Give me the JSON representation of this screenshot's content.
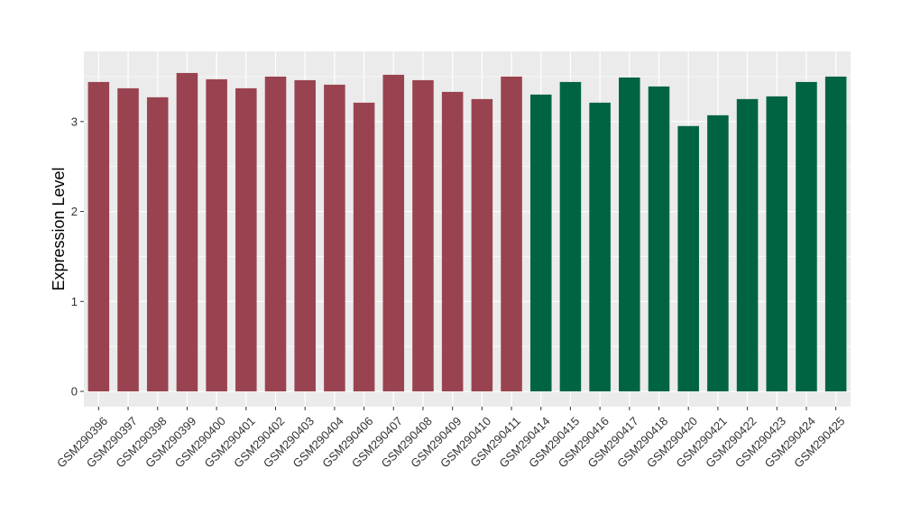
{
  "chart_data": {
    "type": "bar",
    "title": "",
    "xlabel": "",
    "ylabel": "Expression Level",
    "ylim": [
      -0.17,
      3.78
    ],
    "yticks": [
      0,
      1,
      2,
      3
    ],
    "grid": true,
    "legend": "none",
    "categories": [
      "GSM290396",
      "GSM290397",
      "GSM290398",
      "GSM290399",
      "GSM290400",
      "GSM290401",
      "GSM290402",
      "GSM290403",
      "GSM290404",
      "GSM290406",
      "GSM290407",
      "GSM290408",
      "GSM290409",
      "GSM290410",
      "GSM290411",
      "GSM290414",
      "GSM290415",
      "GSM290416",
      "GSM290417",
      "GSM290418",
      "GSM290420",
      "GSM290421",
      "GSM290422",
      "GSM290423",
      "GSM290424",
      "GSM290425"
    ],
    "values": [
      3.44,
      3.37,
      3.27,
      3.54,
      3.47,
      3.37,
      3.5,
      3.46,
      3.41,
      3.21,
      3.52,
      3.46,
      3.33,
      3.25,
      3.5,
      3.3,
      3.44,
      3.21,
      3.49,
      3.39,
      2.95,
      3.07,
      3.25,
      3.28,
      3.44,
      3.5
    ],
    "groups": [
      0,
      0,
      0,
      0,
      0,
      0,
      0,
      0,
      0,
      0,
      0,
      0,
      0,
      0,
      0,
      1,
      1,
      1,
      1,
      1,
      1,
      1,
      1,
      1,
      1,
      1
    ],
    "colors": [
      "#9a4350",
      "#006442"
    ],
    "panel_background": "#ebebeb",
    "grid_color": "#ffffff"
  }
}
